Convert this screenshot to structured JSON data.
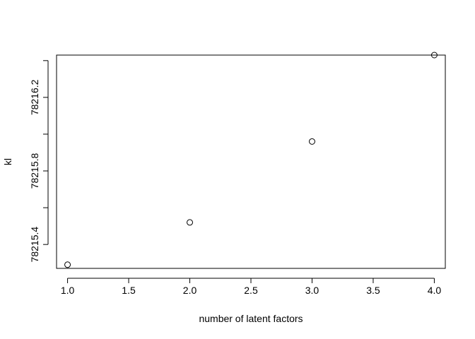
{
  "chart_data": {
    "type": "scatter",
    "title": "",
    "xlabel": "number of latent factors",
    "ylabel": "kl",
    "xlim": [
      0.91,
      4.09
    ],
    "ylim": [
      78215.27,
      78216.43
    ],
    "x_ticks": [
      1.0,
      1.5,
      2.0,
      2.5,
      3.0,
      3.5,
      4.0
    ],
    "x_tick_labels": [
      "1.0",
      "1.5",
      "2.0",
      "2.5",
      "3.0",
      "3.5",
      "4.0"
    ],
    "y_ticks": [
      78215.4,
      78215.6,
      78215.8,
      78216.0,
      78216.2,
      78216.4
    ],
    "y_tick_labels": [
      "78215.4",
      "",
      "78215.8",
      "",
      "78216.2",
      ""
    ],
    "points": [
      {
        "x": 1,
        "y": 78215.29
      },
      {
        "x": 2,
        "y": 78215.52
      },
      {
        "x": 3,
        "y": 78215.96
      },
      {
        "x": 4,
        "y": 78216.43
      }
    ],
    "marker": "open-circle",
    "grid": false,
    "legend": "none"
  }
}
